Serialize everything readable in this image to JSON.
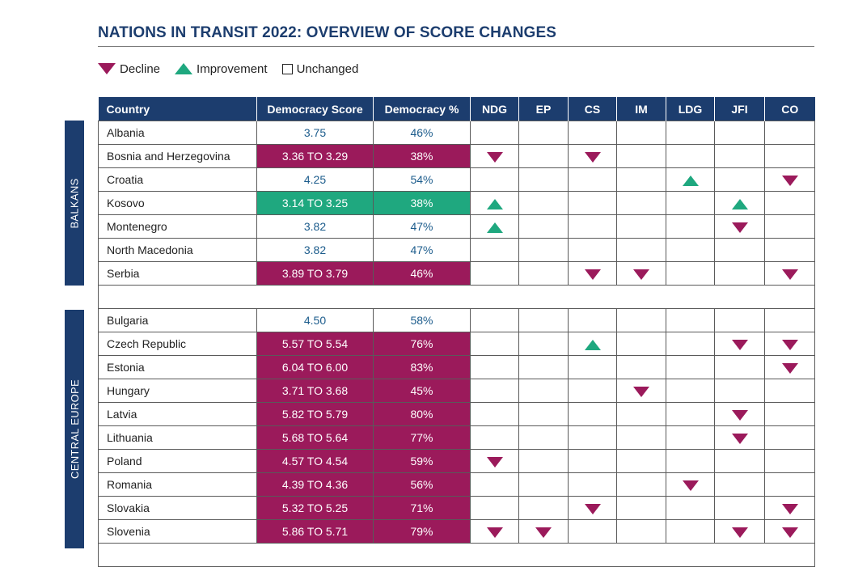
{
  "title": "NATIONS IN TRANSIT 2022: OVERVIEW OF SCORE CHANGES",
  "legend": {
    "decline": "Decline",
    "improvement": "Improvement",
    "unchanged": "Unchanged"
  },
  "colors": {
    "navy": "#1c3d6e",
    "decline": "#9b1a5b",
    "improvement": "#1fa87f",
    "value_text": "#1c5c8c"
  },
  "icons": {
    "decline": "triangle-down-icon",
    "improvement": "triangle-up-icon",
    "unchanged": "empty-square-icon"
  },
  "columns": [
    "Country",
    "Democracy Score",
    "Democracy %",
    "NDG",
    "EP",
    "CS",
    "IM",
    "LDG",
    "JFI",
    "CO"
  ],
  "regions": [
    {
      "label": "BALKANS",
      "rows": [
        {
          "country": "Albania",
          "score": "3.75",
          "pct": "46%",
          "change": "none",
          "marks": {}
        },
        {
          "country": "Bosnia and Herzegovina",
          "score": "3.36 TO 3.29",
          "pct": "38%",
          "change": "decline",
          "marks": {
            "NDG": "down",
            "CS": "down"
          }
        },
        {
          "country": "Croatia",
          "score": "4.25",
          "pct": "54%",
          "change": "none",
          "marks": {
            "LDG": "up",
            "CO": "down"
          }
        },
        {
          "country": "Kosovo",
          "score": "3.14 TO 3.25",
          "pct": "38%",
          "change": "improvement",
          "marks": {
            "NDG": "up",
            "JFI": "up"
          }
        },
        {
          "country": "Montenegro",
          "score": "3.82",
          "pct": "47%",
          "change": "none",
          "marks": {
            "NDG": "up",
            "JFI": "down"
          }
        },
        {
          "country": "North Macedonia",
          "score": "3.82",
          "pct": "47%",
          "change": "none",
          "marks": {}
        },
        {
          "country": "Serbia",
          "score": "3.89 TO 3.79",
          "pct": "46%",
          "change": "decline",
          "marks": {
            "CS": "down",
            "IM": "down",
            "CO": "down"
          }
        }
      ]
    },
    {
      "label": "CENTRAL EUROPE",
      "rows": [
        {
          "country": "Bulgaria",
          "score": "4.50",
          "pct": "58%",
          "change": "none",
          "marks": {}
        },
        {
          "country": "Czech Republic",
          "score": "5.57 TO 5.54",
          "pct": "76%",
          "change": "decline",
          "marks": {
            "CS": "up",
            "JFI": "down",
            "CO": "down"
          }
        },
        {
          "country": "Estonia",
          "score": "6.04 TO 6.00",
          "pct": "83%",
          "change": "decline",
          "marks": {
            "CO": "down"
          }
        },
        {
          "country": "Hungary",
          "score": "3.71 TO 3.68",
          "pct": "45%",
          "change": "decline",
          "marks": {
            "IM": "down"
          }
        },
        {
          "country": "Latvia",
          "score": "5.82 TO 5.79",
          "pct": "80%",
          "change": "decline",
          "marks": {
            "JFI": "down"
          }
        },
        {
          "country": "Lithuania",
          "score": "5.68 TO 5.64",
          "pct": "77%",
          "change": "decline",
          "marks": {
            "JFI": "down"
          }
        },
        {
          "country": "Poland",
          "score": "4.57 TO 4.54",
          "pct": "59%",
          "change": "decline",
          "marks": {
            "NDG": "down"
          }
        },
        {
          "country": "Romania",
          "score": "4.39 TO 4.36",
          "pct": "56%",
          "change": "decline",
          "marks": {
            "LDG": "down"
          }
        },
        {
          "country": "Slovakia",
          "score": "5.32 TO 5.25",
          "pct": "71%",
          "change": "decline",
          "marks": {
            "CS": "down",
            "CO": "down"
          }
        },
        {
          "country": "Slovenia",
          "score": "5.86 TO 5.71",
          "pct": "79%",
          "change": "decline",
          "marks": {
            "NDG": "down",
            "EP": "down",
            "JFI": "down",
            "CO": "down"
          }
        }
      ]
    }
  ]
}
